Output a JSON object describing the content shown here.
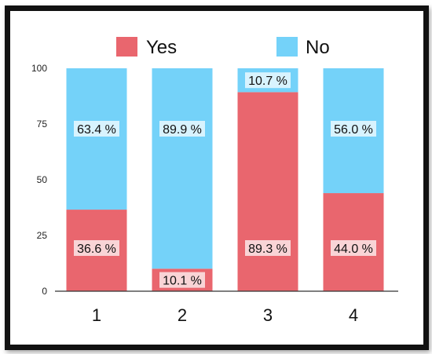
{
  "chart_data": {
    "type": "bar",
    "stacked": true,
    "categories": [
      "1",
      "2",
      "3",
      "4"
    ],
    "series": [
      {
        "name": "Yes",
        "color": "#e9666e",
        "values": [
          36.6,
          10.1,
          89.3,
          44.0
        ],
        "labels": [
          "36.6 %",
          "10.1 %",
          "89.3 %",
          "44.0 %"
        ]
      },
      {
        "name": "No",
        "color": "#74d2f9",
        "values": [
          63.4,
          89.9,
          10.7,
          56.0
        ],
        "labels": [
          "63.4 %",
          "89.9 %",
          "10.7 %",
          "56.0 %"
        ]
      }
    ],
    "ylim": [
      0,
      100
    ],
    "yticks": [
      "0",
      "25",
      "50",
      "75",
      "100"
    ],
    "legend": "top",
    "grid": false,
    "title": "",
    "xlabel": "",
    "ylabel": ""
  }
}
